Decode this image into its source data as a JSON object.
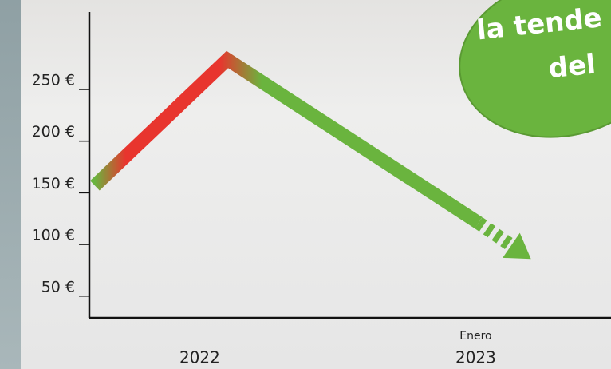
{
  "chart_data": {
    "type": "line",
    "x": [
      2021.62,
      2022.1,
      2023.01
    ],
    "values": [
      150,
      272,
      114
    ],
    "projection": {
      "x": [
        2023.01,
        2023.2
      ],
      "values": [
        114,
        79
      ]
    },
    "gradient_colors": [
      "#6ab43e",
      "#e8352e"
    ],
    "xlim": [
      2021.6,
      2023.49
    ],
    "ylim": [
      22,
      318
    ],
    "xticks": [
      2022,
      2023
    ],
    "yticks": [
      {
        "value": 50,
        "label": "50 €"
      },
      {
        "value": 100,
        "label": "100 €"
      },
      {
        "value": 150,
        "label": "150 €"
      },
      {
        "value": 200,
        "label": "200 €"
      },
      {
        "value": 250,
        "label": "250 €"
      }
    ],
    "annotations": [
      {
        "text": "Enero",
        "x": 2023
      }
    ],
    "badge": [
      "la tende",
      "del"
    ]
  }
}
